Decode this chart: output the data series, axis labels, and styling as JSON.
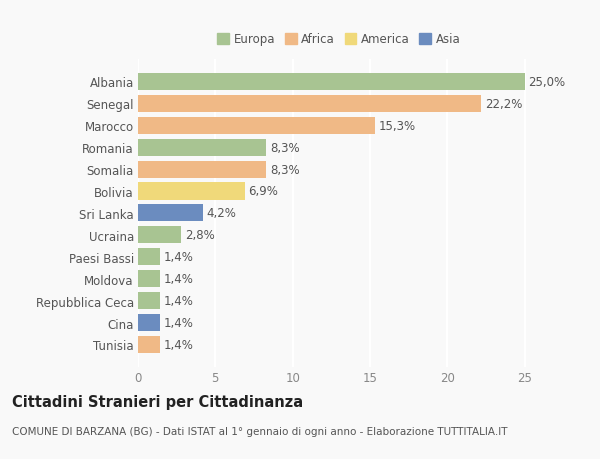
{
  "countries": [
    "Albania",
    "Senegal",
    "Marocco",
    "Romania",
    "Somalia",
    "Bolivia",
    "Sri Lanka",
    "Ucraina",
    "Paesi Bassi",
    "Moldova",
    "Repubblica Ceca",
    "Cina",
    "Tunisia"
  ],
  "values": [
    25.0,
    22.2,
    15.3,
    8.3,
    8.3,
    6.9,
    4.2,
    2.8,
    1.4,
    1.4,
    1.4,
    1.4,
    1.4
  ],
  "labels": [
    "25,0%",
    "22,2%",
    "15,3%",
    "8,3%",
    "8,3%",
    "6,9%",
    "4,2%",
    "2,8%",
    "1,4%",
    "1,4%",
    "1,4%",
    "1,4%",
    "1,4%"
  ],
  "colors": [
    "#a8c492",
    "#f0b986",
    "#f0b986",
    "#a8c492",
    "#f0b986",
    "#f0d97a",
    "#6b8cbf",
    "#a8c492",
    "#a8c492",
    "#a8c492",
    "#a8c492",
    "#6b8cbf",
    "#f0b986"
  ],
  "legend": [
    {
      "label": "Europa",
      "color": "#a8c492"
    },
    {
      "label": "Africa",
      "color": "#f0b986"
    },
    {
      "label": "America",
      "color": "#f0d97a"
    },
    {
      "label": "Asia",
      "color": "#6b8cbf"
    }
  ],
  "xlim": [
    0,
    26
  ],
  "xticks": [
    0,
    5,
    10,
    15,
    20,
    25
  ],
  "title": "Cittadini Stranieri per Cittadinanza",
  "subtitle": "COMUNE DI BARZANA (BG) - Dati ISTAT al 1° gennaio di ogni anno - Elaborazione TUTTITALIA.IT",
  "background_color": "#f9f9f9",
  "grid_color": "#ffffff",
  "bar_height": 0.78,
  "label_fontsize": 8.5,
  "ytick_fontsize": 8.5,
  "xtick_fontsize": 8.5,
  "title_fontsize": 10.5,
  "subtitle_fontsize": 7.5,
  "legend_fontsize": 8.5
}
